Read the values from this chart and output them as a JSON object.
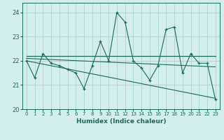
{
  "xlabel": "Humidex (Indice chaleur)",
  "bg_color": "#d4eeeb",
  "grid_color": "#a8d4d0",
  "line_color": "#1a6b5a",
  "xlim": [
    -0.5,
    23.5
  ],
  "ylim": [
    20.0,
    24.4
  ],
  "yticks": [
    20,
    21,
    22,
    23,
    24
  ],
  "xticks": [
    0,
    1,
    2,
    3,
    4,
    5,
    6,
    7,
    8,
    9,
    10,
    11,
    12,
    13,
    14,
    15,
    16,
    17,
    18,
    19,
    20,
    21,
    22,
    23
  ],
  "main_y": [
    22.0,
    21.3,
    22.3,
    21.9,
    21.8,
    21.65,
    21.5,
    20.85,
    21.8,
    22.8,
    22.0,
    24.0,
    23.6,
    22.0,
    21.7,
    21.2,
    21.8,
    23.3,
    23.4,
    21.5,
    22.3,
    21.9,
    21.9,
    20.4
  ],
  "trend1_x": [
    0,
    23
  ],
  "trend1_y": [
    22.2,
    22.2
  ],
  "trend2_x": [
    0,
    23
  ],
  "trend2_y": [
    22.1,
    21.75
  ],
  "trend3_x": [
    0,
    23
  ],
  "trend3_y": [
    22.0,
    20.45
  ]
}
